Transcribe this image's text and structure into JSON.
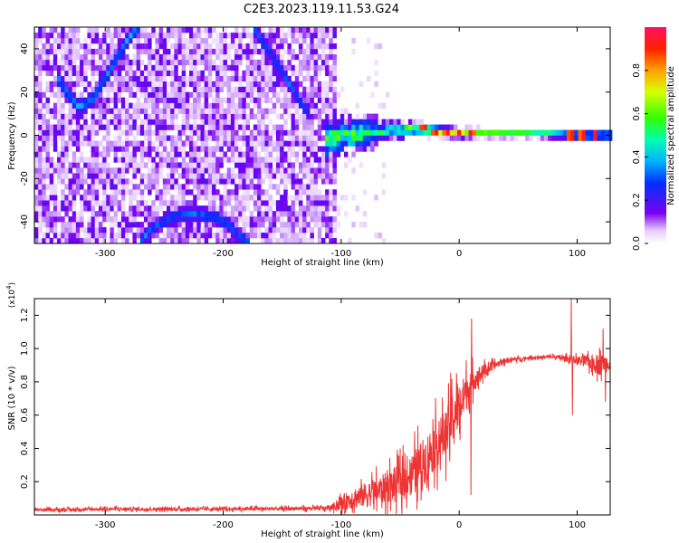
{
  "title": "C2E3.2023.119.11.53.G24",
  "chart_data": [
    {
      "type": "heatmap",
      "xlabel": "Height of straight line (km)",
      "ylabel": "Frequency (Hz)",
      "xlim": [
        -360,
        128
      ],
      "ylim": [
        -50,
        50
      ],
      "xticks": [
        -300,
        -200,
        -100,
        0,
        100
      ],
      "yticks": [
        -40,
        -20,
        0,
        20,
        40
      ],
      "colorbar": {
        "label": "Normalized spectral amplitude",
        "range": [
          0.0,
          1.0
        ],
        "ticks": [
          0.0,
          0.2,
          0.4,
          0.6,
          0.8
        ]
      },
      "features": [
        {
          "name": "noise-field",
          "x_range": [
            -360,
            -105
          ],
          "y_range": [
            -50,
            50
          ],
          "amplitude": 0.15
        },
        {
          "name": "wave-upper-left",
          "x": [
            -340,
            -330,
            -322,
            -312,
            -300,
            -290,
            -280,
            -272
          ],
          "y": [
            26,
            18,
            13,
            16,
            26,
            36,
            45,
            50
          ],
          "amplitude": 0.35
        },
        {
          "name": "wave-upper-right",
          "x": [
            -175,
            -165,
            -155,
            -145,
            -135,
            -125
          ],
          "y": [
            50,
            42,
            34,
            25,
            16,
            8
          ],
          "amplitude": 0.3
        },
        {
          "name": "wave-lower",
          "x": [
            -272,
            -260,
            -245,
            -230,
            -215,
            -205,
            -195,
            -185,
            -178
          ],
          "y": [
            -50,
            -43,
            -38,
            -36,
            -37,
            -38,
            -42,
            -47,
            -50
          ],
          "amplitude": 0.3
        },
        {
          "name": "carrier",
          "x": [
            -115,
            -100,
            -80,
            -60,
            -40,
            -20,
            0,
            20,
            60,
            100,
            128
          ],
          "y": [
            -2,
            0,
            1,
            2,
            3,
            2,
            1,
            1,
            1,
            0,
            0
          ],
          "halfwidth": [
            8,
            6,
            5,
            3,
            2.5,
            2,
            1.8,
            1.5,
            1.5,
            1.5,
            1.5
          ],
          "amplitude": [
            0.45,
            0.5,
            0.5,
            0.45,
            0.6,
            0.75,
            0.7,
            0.6,
            0.55,
            0.6,
            0.6
          ]
        },
        {
          "name": "carrier-peaks",
          "x": [
            -30,
            -20,
            -10,
            0,
            10,
            95,
            105,
            115
          ],
          "y": [
            3,
            2,
            1,
            1,
            1,
            0,
            0,
            0
          ],
          "amplitude": 0.95
        }
      ]
    },
    {
      "type": "line",
      "xlabel": "Height of straight line (km)",
      "ylabel": "SNR (10 * v/v)",
      "y_multiplier_label": "(x10^4)",
      "xlim": [
        -360,
        128
      ],
      "ylim": [
        0,
        1.3
      ],
      "xticks": [
        -300,
        -200,
        -100,
        0,
        100
      ],
      "yticks": [
        0.2,
        0.4,
        0.6,
        0.8,
        1.0,
        1.2
      ],
      "series": [
        {
          "color": "#ee3333",
          "x": [
            -360,
            -300,
            -200,
            -110,
            -100,
            -90,
            -80,
            -70,
            -60,
            -50,
            -40,
            -30,
            -20,
            -10,
            -5,
            0,
            5,
            10,
            20,
            30,
            40,
            60,
            80,
            100,
            110,
            120,
            128
          ],
          "y": [
            0.03,
            0.035,
            0.035,
            0.04,
            0.07,
            0.1,
            0.12,
            0.14,
            0.17,
            0.2,
            0.25,
            0.32,
            0.42,
            0.5,
            0.6,
            0.65,
            0.72,
            0.8,
            0.86,
            0.9,
            0.93,
            0.945,
            0.95,
            0.93,
            0.92,
            0.9,
            0.92
          ],
          "noise": [
            0.01,
            0.012,
            0.012,
            0.015,
            0.05,
            0.08,
            0.09,
            0.1,
            0.12,
            0.13,
            0.15,
            0.18,
            0.18,
            0.18,
            0.2,
            0.18,
            0.15,
            0.1,
            0.05,
            0.03,
            0.02,
            0.01,
            0.015,
            0.03,
            0.05,
            0.08,
            0.06
          ],
          "spikes": [
            {
              "x": 10.5,
              "y": 1.18
            },
            {
              "x": 10.0,
              "y": 0.12
            },
            {
              "x": 95,
              "y": 1.3
            },
            {
              "x": 96,
              "y": 0.6
            },
            {
              "x": 122,
              "y": 1.12
            },
            {
              "x": 124,
              "y": 0.68
            }
          ]
        }
      ]
    }
  ]
}
